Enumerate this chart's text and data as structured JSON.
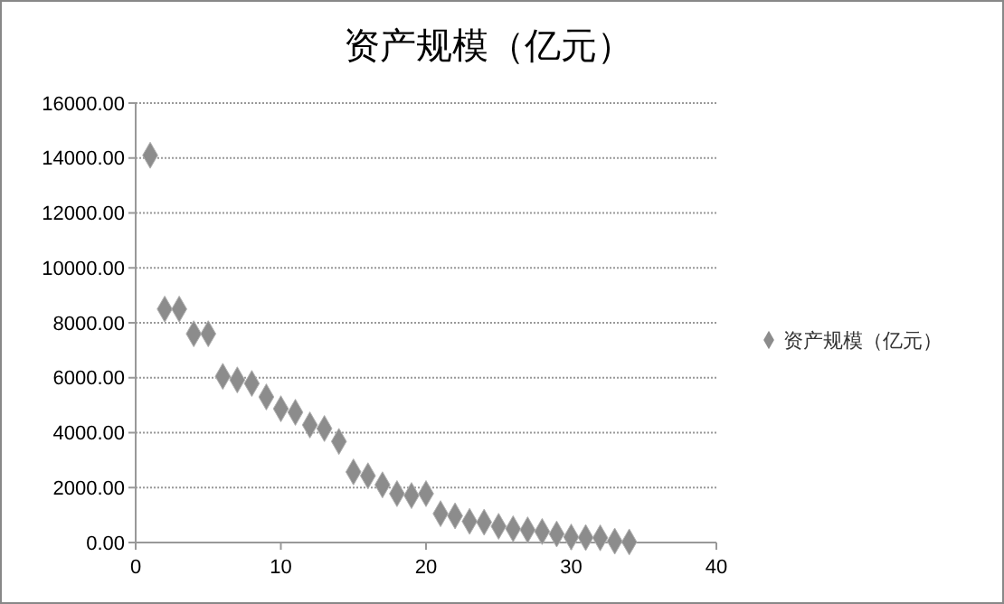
{
  "chart_data": {
    "type": "scatter",
    "title": "资产规模（亿元）",
    "x": [
      1,
      2,
      3,
      4,
      5,
      6,
      7,
      8,
      9,
      10,
      11,
      12,
      13,
      14,
      15,
      16,
      17,
      18,
      19,
      20,
      21,
      22,
      23,
      24,
      25,
      26,
      27,
      28,
      29,
      30,
      31,
      32,
      33,
      34
    ],
    "series": [
      {
        "name": "资产规模（亿元）",
        "color": "#8c8c8c",
        "values": [
          14100,
          8500,
          8500,
          7600,
          7600,
          6050,
          5920,
          5790,
          5300,
          4870,
          4740,
          4280,
          4150,
          3680,
          2570,
          2430,
          2100,
          1780,
          1710,
          1780,
          1050,
          970,
          770,
          740,
          590,
          500,
          460,
          400,
          310,
          200,
          180,
          170,
          50,
          20
        ]
      }
    ],
    "xlim": [
      0,
      40
    ],
    "xticks": [
      0,
      10,
      20,
      30,
      40
    ],
    "ylim": [
      0,
      16000
    ],
    "yticks": [
      {
        "value": 0,
        "label": "0.00"
      },
      {
        "value": 2000,
        "label": "2000.00"
      },
      {
        "value": 4000,
        "label": "4000.00"
      },
      {
        "value": 6000,
        "label": "6000.00"
      },
      {
        "value": 8000,
        "label": "8000.00"
      },
      {
        "value": 10000,
        "label": "10000.00"
      },
      {
        "value": 12000,
        "label": "12000.00"
      },
      {
        "value": 14000,
        "label": "14000.00"
      },
      {
        "value": 16000,
        "label": "16000.00"
      }
    ],
    "grid": "y",
    "legend": "right",
    "marker": "diamond"
  }
}
